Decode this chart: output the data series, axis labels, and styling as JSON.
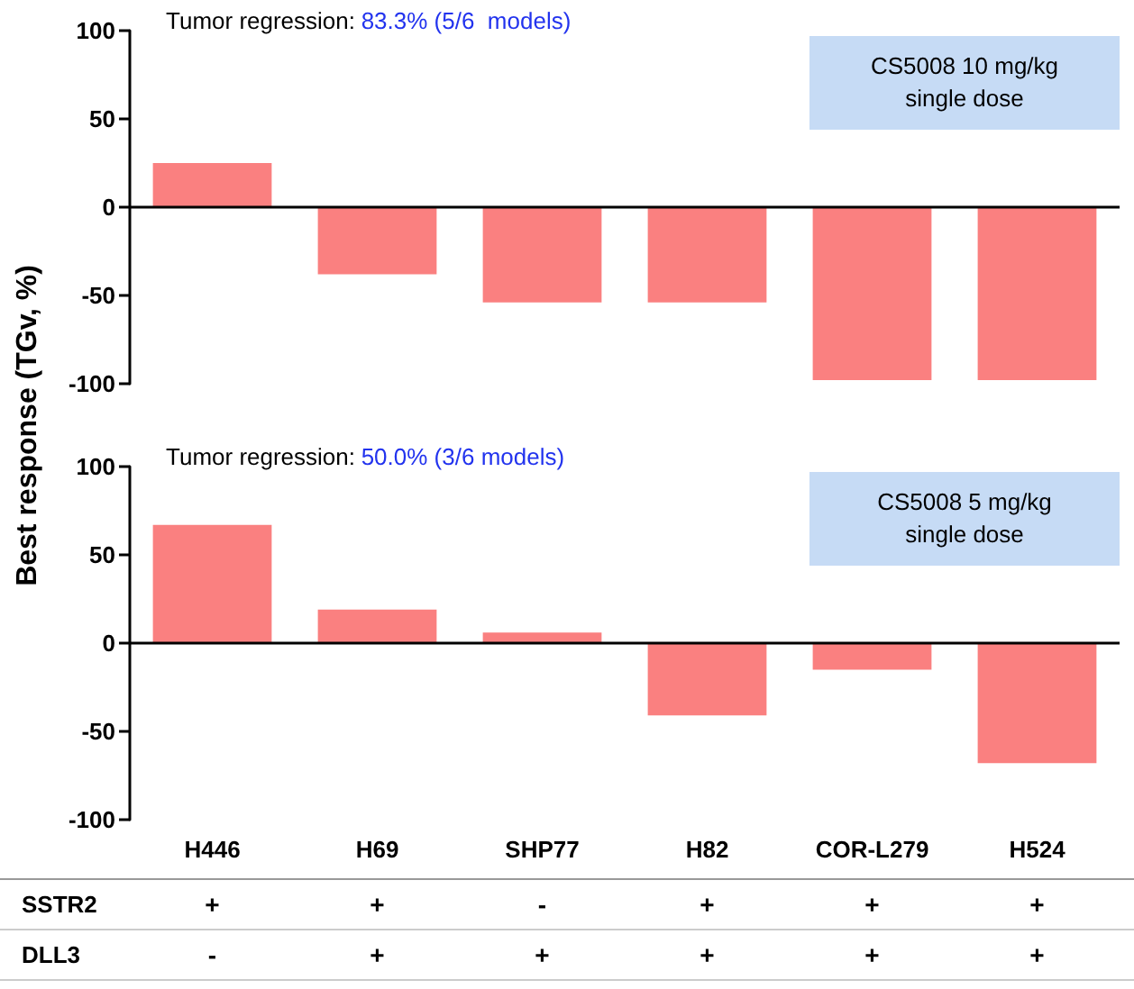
{
  "chart_data": [
    {
      "type": "bar",
      "ylabel": "Best response (TGv, %)",
      "categories": [
        null,
        null,
        null,
        null,
        null,
        null
      ],
      "values": [
        25,
        -38,
        -54,
        -54,
        -98,
        -98
      ],
      "color": "#fa8080",
      "ylim": [
        -100,
        100
      ],
      "yticks": [
        -100,
        -50,
        0,
        50,
        100
      ],
      "grid": false,
      "tick_labels": "y",
      "ref_lines": [
        {
          "axis": "y",
          "value": 0,
          "color": "#000000"
        }
      ],
      "annotations": [
        "Tumor regression:",
        "83.3% (5/6  models)",
        "CS5008 10 mg/kg\nsingle dose"
      ]
    },
    {
      "type": "bar",
      "categories": [
        "H446",
        "H69",
        "SHP77",
        "H82",
        "COR-L279",
        "H524"
      ],
      "values": [
        67,
        19,
        6,
        -41,
        -15,
        -68
      ],
      "color": "#fa8080",
      "ylim": [
        -100,
        100
      ],
      "yticks": [
        -100,
        -50,
        0,
        50,
        100
      ],
      "grid": false,
      "ref_lines": [
        {
          "axis": "y",
          "value": 0,
          "color": "#000000"
        }
      ],
      "annotations": [
        "Tumor regression:",
        "50.0% (3/6 models)",
        "CS5008 5 mg/kg\nsingle dose",
        "SSTR2",
        "+",
        "+",
        "-",
        "+",
        "+",
        "+",
        "DLL3",
        "-",
        "+",
        "+",
        "+",
        "+",
        "+"
      ]
    }
  ]
}
